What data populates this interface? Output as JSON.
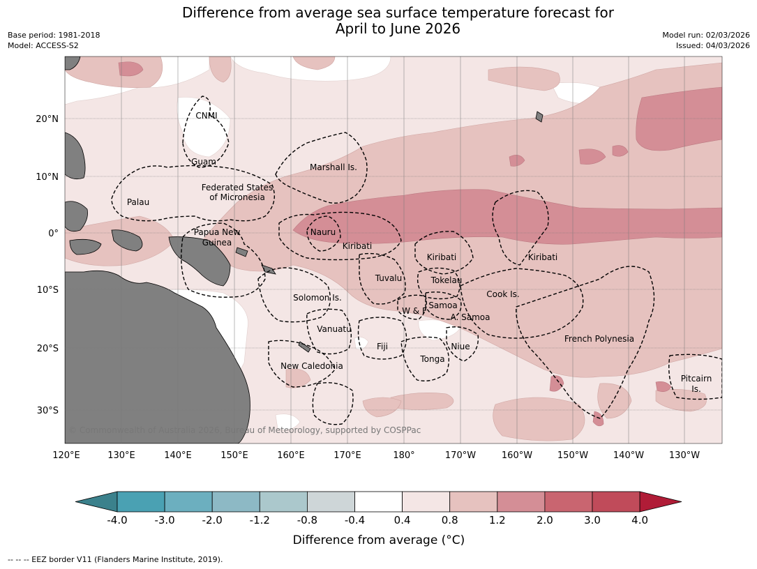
{
  "title_line1": "Difference from average sea surface temperature forecast for",
  "title_line2": "April to June 2026",
  "base_period": "Base period: 1981-2018",
  "model": "Model: ACCESS-S2",
  "model_run": "Model run: 02/03/2026",
  "issued": "Issued: 04/03/2026",
  "lat_ticks": [
    "20°N",
    "10°N",
    "0°",
    "10°S",
    "20°S",
    "30°S"
  ],
  "lon_ticks": [
    "120°E",
    "130°E",
    "140°E",
    "150°E",
    "160°E",
    "170°E",
    "180°",
    "170°W",
    "160°W",
    "150°W",
    "140°W",
    "130°W"
  ],
  "region_labels": [
    "CNMI",
    "Guam",
    "Marshall Is.",
    "Federated States",
    "of Micronesia",
    "Palau",
    "Papua New",
    "Guinea",
    "Nauru",
    "Kiribati",
    "Kiribati",
    "Kiribati",
    "Tuvalu",
    "Tokelau",
    "Cook Is.",
    "Solomon Is.",
    "W & F",
    "Samoa",
    "A. Samoa",
    "Vanuatu",
    "Fiji",
    "Niue",
    "Tonga",
    "French Polynesia",
    "New Caledonia",
    "Pitcairn",
    "Is."
  ],
  "copyright": "© Commonwealth of Australia 2026, Bureau of Meteorology, supported by COSPPac",
  "colorbar": {
    "bounds": [
      "-4.0",
      "-3.0",
      "-2.0",
      "-1.2",
      "-0.8",
      "-0.4",
      "0.4",
      "0.8",
      "1.2",
      "2.0",
      "3.0",
      "4.0"
    ],
    "colors": [
      "#3b818c",
      "#4aa1b3",
      "#6cafbf",
      "#8db9c5",
      "#abc8cc",
      "#ced6d8",
      "#ffffff",
      "#f4e6e5",
      "#e6c2bf",
      "#d48e96",
      "#c96570",
      "#c04b5a",
      "#b01c37"
    ],
    "label": "Difference from average (°C)"
  },
  "footer": "--  --  -- EEZ border V11 (Flanders Marine Institute, 2019)."
}
